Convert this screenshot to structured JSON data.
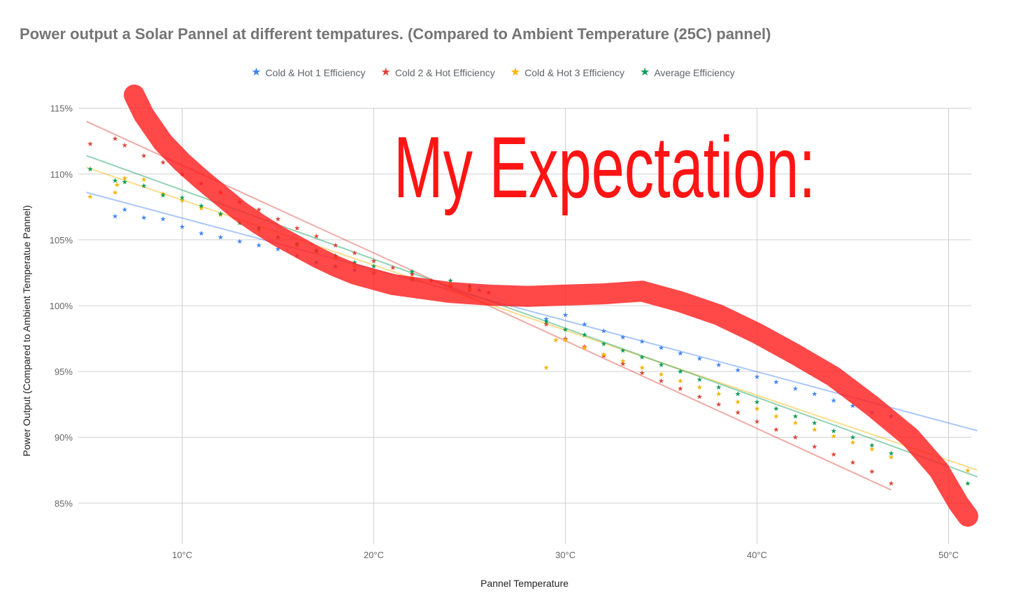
{
  "chart_data": {
    "type": "scatter",
    "title": "Power output a Solar Pannel at different tempatures. (Compared to Ambient Temperature (25C) pannel)",
    "xlabel": "Pannel Temperature",
    "ylabel": "Power Output (Compared to Ambient Temperatue Pannel)",
    "xlim": [
      5,
      51.5
    ],
    "ylim": [
      82,
      115
    ],
    "x_ticks": [
      10,
      20,
      30,
      40,
      50
    ],
    "x_tick_labels": [
      "10°C",
      "20°C",
      "30°C",
      "40°C",
      "50°C"
    ],
    "y_ticks": [
      85,
      90,
      95,
      100,
      105,
      110,
      115
    ],
    "y_tick_labels": [
      "85%",
      "90%",
      "95%",
      "100%",
      "105%",
      "110%",
      "115%"
    ],
    "grid": true,
    "legend_position": "top",
    "series": [
      {
        "name": "Cold & Hot 1 Efficiency",
        "color": "#4285f4",
        "marker": "star",
        "points": [
          [
            6.5,
            106.8
          ],
          [
            7,
            107.3
          ],
          [
            8,
            106.7
          ],
          [
            9,
            106.6
          ],
          [
            10,
            106
          ],
          [
            11,
            105.5
          ],
          [
            12,
            105.2
          ],
          [
            13,
            104.9
          ],
          [
            14,
            104.6
          ],
          [
            15,
            104.3
          ],
          [
            16,
            103.8
          ],
          [
            17,
            103.3
          ],
          [
            18,
            103
          ],
          [
            19,
            102.7
          ],
          [
            20,
            102.5
          ],
          [
            22,
            102
          ],
          [
            24,
            101.6
          ],
          [
            25.5,
            101.2
          ],
          [
            29,
            99
          ],
          [
            30,
            99.3
          ],
          [
            31,
            98.6
          ],
          [
            32,
            98.1
          ],
          [
            33,
            97.6
          ],
          [
            34,
            97.3
          ],
          [
            35,
            96.8
          ],
          [
            36,
            96.4
          ],
          [
            37,
            96
          ],
          [
            38,
            95.5
          ],
          [
            39,
            95.1
          ],
          [
            40,
            94.6
          ],
          [
            41,
            94.2
          ],
          [
            42,
            93.7
          ],
          [
            43,
            93.3
          ],
          [
            44,
            92.8
          ],
          [
            45,
            92.4
          ],
          [
            46,
            91.9
          ],
          [
            47,
            91.6
          ]
        ],
        "trendline": [
          [
            5,
            108.6
          ],
          [
            51.5,
            90.5
          ]
        ]
      },
      {
        "name": "Cold 2 & Hot Efficiency",
        "color": "#db4437",
        "marker": "star",
        "points": [
          [
            5.2,
            112.3
          ],
          [
            6.5,
            112.7
          ],
          [
            7,
            112.2
          ],
          [
            8,
            111.4
          ],
          [
            9,
            110.9
          ],
          [
            10,
            110
          ],
          [
            11,
            109.3
          ],
          [
            12,
            108.6
          ],
          [
            13,
            107.9
          ],
          [
            14,
            107.3
          ],
          [
            15,
            106.6
          ],
          [
            16,
            105.9
          ],
          [
            17,
            105.3
          ],
          [
            18,
            104.6
          ],
          [
            19,
            104
          ],
          [
            20,
            103.4
          ],
          [
            21,
            102.9
          ],
          [
            22,
            102.4
          ],
          [
            23,
            101.9
          ],
          [
            24,
            101.5
          ],
          [
            25,
            101.2
          ],
          [
            26,
            101
          ],
          [
            29,
            98.6
          ],
          [
            30,
            97.5
          ],
          [
            31,
            96.9
          ],
          [
            32,
            96.2
          ],
          [
            33,
            95.6
          ],
          [
            34,
            94.9
          ],
          [
            35,
            94.3
          ],
          [
            36,
            93.7
          ],
          [
            37,
            93.1
          ],
          [
            38,
            92.5
          ],
          [
            39,
            91.9
          ],
          [
            40,
            91.2
          ],
          [
            41,
            90.6
          ],
          [
            42,
            90
          ],
          [
            43,
            89.3
          ],
          [
            44,
            88.7
          ],
          [
            45,
            88.1
          ],
          [
            46,
            87.4
          ],
          [
            47,
            86.5
          ]
        ],
        "trendline": [
          [
            5,
            114
          ],
          [
            47,
            86
          ]
        ]
      },
      {
        "name": "Cold & Hot 3 Efficiency",
        "color": "#f4b400",
        "marker": "star",
        "points": [
          [
            5.2,
            108.3
          ],
          [
            6.5,
            108.6
          ],
          [
            6.6,
            109.2
          ],
          [
            7,
            109.7
          ],
          [
            8,
            109.6
          ],
          [
            9,
            108.5
          ],
          [
            10,
            108
          ],
          [
            11,
            107.4
          ],
          [
            12,
            106.9
          ],
          [
            13,
            106.3
          ],
          [
            14,
            105.7
          ],
          [
            15,
            105.2
          ],
          [
            16,
            104.6
          ],
          [
            17,
            104.1
          ],
          [
            18,
            103.6
          ],
          [
            19,
            103
          ],
          [
            20,
            102.6
          ],
          [
            22,
            102.1
          ],
          [
            24,
            101.6
          ],
          [
            25,
            101.3
          ],
          [
            29,
            95.3
          ],
          [
            29.5,
            97.4
          ],
          [
            30,
            97.4
          ],
          [
            31,
            96.8
          ],
          [
            32,
            96.3
          ],
          [
            33,
            95.8
          ],
          [
            34,
            95.3
          ],
          [
            35,
            94.8
          ],
          [
            36,
            94.3
          ],
          [
            37,
            93.8
          ],
          [
            38,
            93.3
          ],
          [
            39,
            92.7
          ],
          [
            40,
            92.2
          ],
          [
            41,
            91.6
          ],
          [
            42,
            91.1
          ],
          [
            43,
            90.6
          ],
          [
            44,
            90.1
          ],
          [
            45,
            89.6
          ],
          [
            46,
            89.1
          ],
          [
            47,
            88.5
          ],
          [
            51,
            87.5
          ]
        ],
        "trendline": [
          [
            5,
            110.5
          ],
          [
            51.5,
            87.5
          ]
        ]
      },
      {
        "name": "Average Efficiency",
        "color": "#0f9d58",
        "marker": "star",
        "points": [
          [
            5.2,
            110.4
          ],
          [
            6.5,
            109.5
          ],
          [
            7,
            109.4
          ],
          [
            8,
            109.1
          ],
          [
            9,
            108.4
          ],
          [
            10,
            108.2
          ],
          [
            11,
            107.6
          ],
          [
            12,
            107
          ],
          [
            13,
            106.3
          ],
          [
            14,
            105.9
          ],
          [
            15,
            105.2
          ],
          [
            16,
            104.7
          ],
          [
            17,
            104.2
          ],
          [
            18,
            103.8
          ],
          [
            19,
            103.3
          ],
          [
            20,
            103
          ],
          [
            22,
            102.6
          ],
          [
            24,
            101.9
          ],
          [
            25,
            101.5
          ],
          [
            29,
            98.8
          ],
          [
            30,
            98.2
          ],
          [
            31,
            97.8
          ],
          [
            32,
            97.1
          ],
          [
            33,
            96.6
          ],
          [
            34,
            96.1
          ],
          [
            35,
            95.5
          ],
          [
            36,
            95
          ],
          [
            37,
            94.4
          ],
          [
            38,
            93.8
          ],
          [
            39,
            93.3
          ],
          [
            40,
            92.7
          ],
          [
            41,
            92.2
          ],
          [
            42,
            91.6
          ],
          [
            43,
            91.1
          ],
          [
            44,
            90.5
          ],
          [
            45,
            90
          ],
          [
            46,
            89.4
          ],
          [
            47,
            88.8
          ],
          [
            51,
            86.5
          ]
        ],
        "trendline": [
          [
            5,
            111.4
          ],
          [
            51.5,
            87
          ]
        ]
      }
    ],
    "annotation": {
      "text": "My Expectation:",
      "color": "#ff1414",
      "curve_color": "#ff2020",
      "curve": [
        [
          7.5,
          116
        ],
        [
          8,
          114.5
        ],
        [
          9,
          112.4
        ],
        [
          10,
          110.9
        ],
        [
          11,
          109.6
        ],
        [
          12,
          108.4
        ],
        [
          13,
          107.2
        ],
        [
          14,
          106.2
        ],
        [
          15,
          105.3
        ],
        [
          16,
          104.5
        ],
        [
          17,
          103.7
        ],
        [
          18,
          103
        ],
        [
          19,
          102.4
        ],
        [
          20,
          102
        ],
        [
          21,
          101.6
        ],
        [
          22,
          101.4
        ],
        [
          24,
          101
        ],
        [
          26,
          100.8
        ],
        [
          28,
          100.7
        ],
        [
          30,
          100.8
        ],
        [
          32,
          100.9
        ],
        [
          34,
          101.1
        ],
        [
          36,
          100.3
        ],
        [
          38,
          99.3
        ],
        [
          40,
          97.9
        ],
        [
          42,
          96.3
        ],
        [
          44,
          94.6
        ],
        [
          46,
          92.4
        ],
        [
          48,
          90
        ],
        [
          49.5,
          87.5
        ],
        [
          50.5,
          85
        ],
        [
          51,
          84
        ]
      ]
    }
  }
}
